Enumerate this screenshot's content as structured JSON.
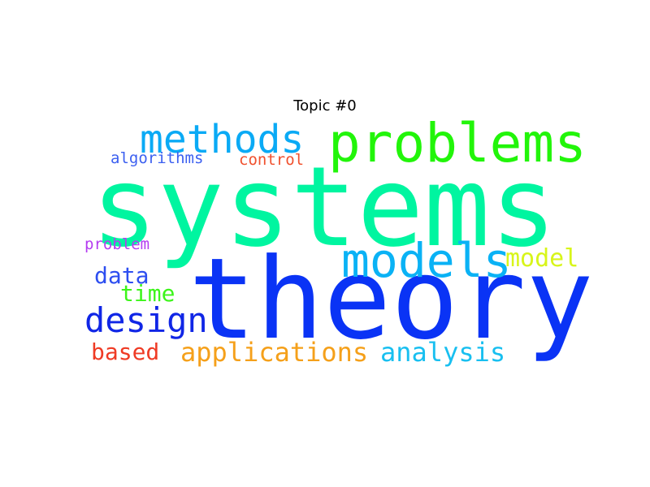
{
  "title": "Topic #0",
  "words": [
    {
      "id": "w-systems",
      "text": "systems",
      "color": "#00f5a0"
    },
    {
      "id": "w-theory",
      "text": "theory",
      "color": "#0a33f5"
    },
    {
      "id": "w-problems",
      "text": "problems",
      "color": "#22f50a"
    },
    {
      "id": "w-methods",
      "text": "methods",
      "color": "#0aaaf5"
    },
    {
      "id": "w-models",
      "text": "models",
      "color": "#0ab2f5"
    },
    {
      "id": "w-design",
      "text": "design",
      "color": "#1026e6"
    },
    {
      "id": "w-applications",
      "text": "applications",
      "color": "#f5a01a"
    },
    {
      "id": "w-analysis",
      "text": "analysis",
      "color": "#18bff0"
    },
    {
      "id": "w-based",
      "text": "based",
      "color": "#ef3b25"
    },
    {
      "id": "w-model",
      "text": "model",
      "color": "#d8f51a"
    },
    {
      "id": "w-data",
      "text": "data",
      "color": "#2d4ef0"
    },
    {
      "id": "w-time",
      "text": "time",
      "color": "#3cf51a"
    },
    {
      "id": "w-algorithms",
      "text": "algorithms",
      "color": "#3b5ff0"
    },
    {
      "id": "w-control",
      "text": "control",
      "color": "#f0502d"
    },
    {
      "id": "w-problem",
      "text": "problem",
      "color": "#b43cf0"
    }
  ]
}
